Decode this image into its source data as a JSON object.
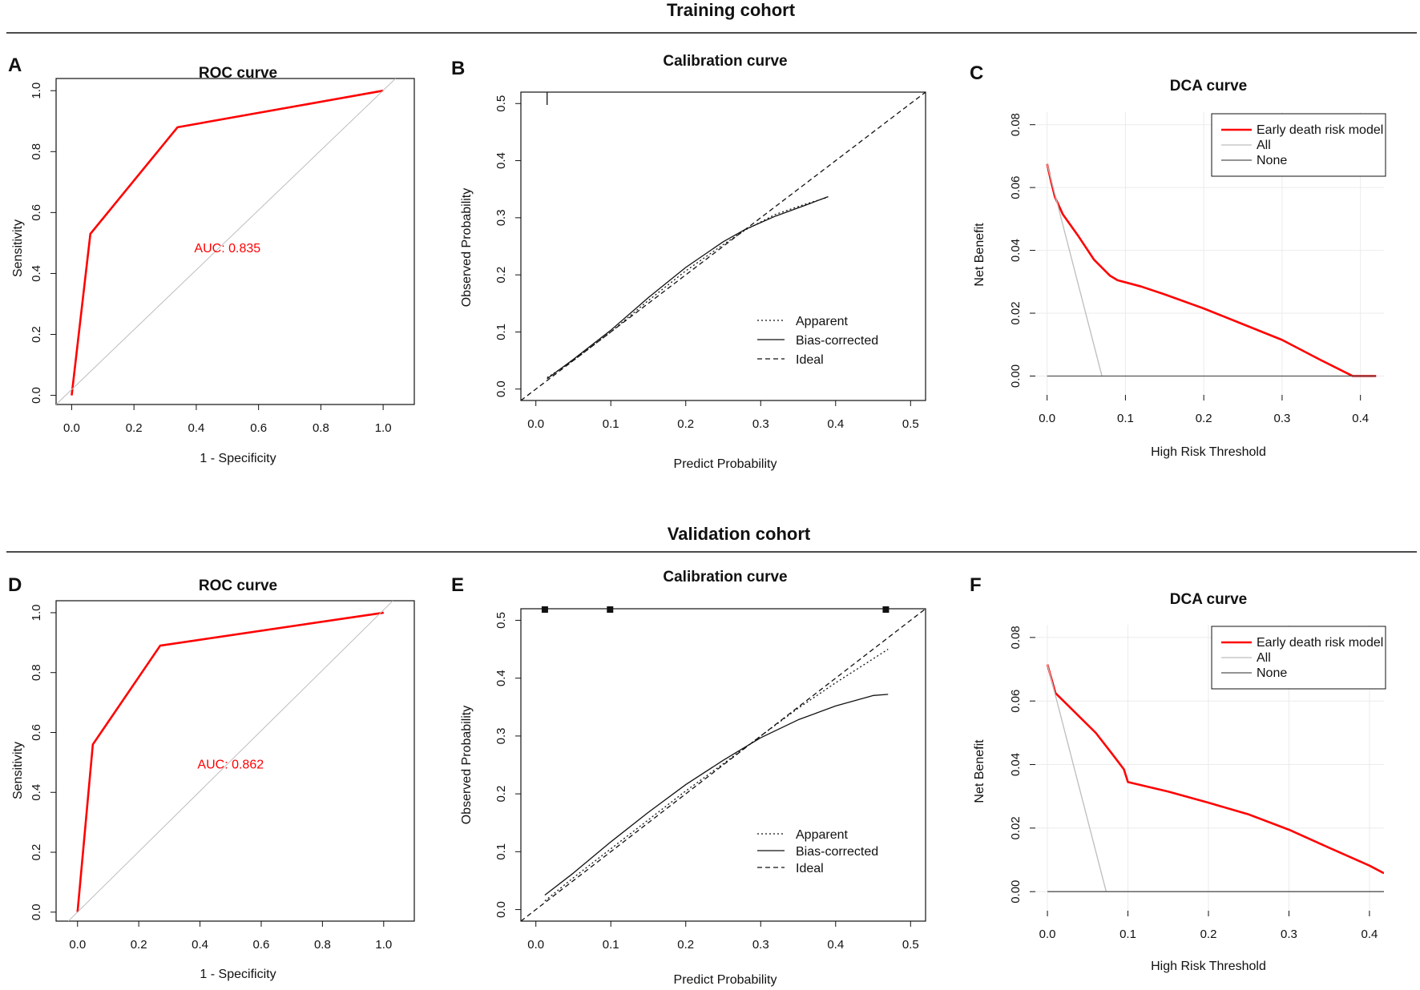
{
  "figure": {
    "training_title": "Training cohort",
    "validation_title": "Validation cohort",
    "colors": {
      "model": "#ff0000",
      "all": "#bdbdbd",
      "none": "#555555",
      "grid": "#ebebeb",
      "diag": "#bdbdbd"
    }
  },
  "chart_data": [
    {
      "id": "A",
      "type": "line",
      "title": "ROC curve",
      "xlabel": "1 - Specificity",
      "ylabel": "Sensitivity",
      "xlim": [
        -0.05,
        1.1
      ],
      "ylim": [
        -0.03,
        1.04
      ],
      "xticks": [
        "0.0",
        "0.2",
        "0.4",
        "0.6",
        "0.8",
        "1.0"
      ],
      "yticks": [
        "0.0",
        "0.2",
        "0.4",
        "0.6",
        "0.8",
        "1.0"
      ],
      "series": [
        {
          "name": "ROC",
          "x": [
            0,
            0.06,
            0.34,
            1.0
          ],
          "y": [
            0,
            0.53,
            0.88,
            1.0
          ]
        },
        {
          "name": "Reference",
          "x": [
            -0.05,
            1.04
          ],
          "y": [
            -0.03,
            1.04
          ]
        }
      ],
      "annotation": {
        "text": "AUC: 0.835",
        "x": 0.5,
        "y": 0.47
      }
    },
    {
      "id": "B",
      "type": "line",
      "title": "Calibration curve",
      "xlabel": "Predict Probability",
      "ylabel": "Observed Probability",
      "xlim": [
        -0.02,
        0.52
      ],
      "ylim": [
        -0.02,
        0.52
      ],
      "xticks": [
        "0.0",
        "0.1",
        "0.2",
        "0.3",
        "0.4",
        "0.5"
      ],
      "yticks": [
        "0.0",
        "0.1",
        "0.2",
        "0.3",
        "0.4",
        "0.5"
      ],
      "series": [
        {
          "name": "Apparent",
          "style": "dotted",
          "x": [
            0.015,
            0.05,
            0.1,
            0.15,
            0.2,
            0.25,
            0.28,
            0.32,
            0.36,
            0.39
          ],
          "y": [
            0.02,
            0.05,
            0.1,
            0.155,
            0.207,
            0.253,
            0.279,
            0.306,
            0.324,
            0.336
          ]
        },
        {
          "name": "Bias-corrected",
          "style": "solid",
          "x": [
            0.015,
            0.05,
            0.1,
            0.15,
            0.2,
            0.25,
            0.28,
            0.32,
            0.36,
            0.39
          ],
          "y": [
            0.018,
            0.052,
            0.103,
            0.16,
            0.213,
            0.258,
            0.28,
            0.303,
            0.322,
            0.337
          ]
        },
        {
          "name": "Ideal",
          "style": "dashed",
          "x": [
            -0.02,
            0.52
          ],
          "y": [
            -0.02,
            0.52
          ]
        }
      ],
      "rug": [
        0.015
      ],
      "legend": [
        "Apparent",
        "Bias-corrected",
        "Ideal"
      ]
    },
    {
      "id": "C",
      "type": "line",
      "title": "DCA curve",
      "xlabel": "High Risk Threshold",
      "ylabel": "Net Benefit",
      "xlim": [
        -0.015,
        0.43
      ],
      "ylim": [
        -0.006,
        0.084
      ],
      "xticks": [
        "0.0",
        "0.1",
        "0.2",
        "0.3",
        "0.4"
      ],
      "yticks": [
        "0.00",
        "0.02",
        "0.04",
        "0.06",
        "0.08"
      ],
      "series": [
        {
          "name": "Early death risk model",
          "x": [
            0,
            0.005,
            0.01,
            0.02,
            0.04,
            0.06,
            0.08,
            0.09,
            0.12,
            0.15,
            0.2,
            0.25,
            0.3,
            0.35,
            0.39,
            0.42
          ],
          "y": [
            0.0675,
            0.062,
            0.057,
            0.0515,
            0.0445,
            0.037,
            0.032,
            0.0305,
            0.0285,
            0.026,
            0.0215,
            0.0165,
            0.0115,
            0.005,
            0.0,
            0.0
          ]
        },
        {
          "name": "All",
          "x": [
            0,
            0.07
          ],
          "y": [
            0.0675,
            0.0
          ]
        },
        {
          "name": "None",
          "x": [
            0,
            0.42
          ],
          "y": [
            0,
            0
          ]
        }
      ],
      "legend": [
        "Early death risk model",
        "All",
        "None"
      ]
    },
    {
      "id": "D",
      "type": "line",
      "title": "ROC curve",
      "xlabel": "1 - Specificity",
      "ylabel": "Sensitivity",
      "xlim": [
        -0.07,
        1.1
      ],
      "ylim": [
        -0.03,
        1.04
      ],
      "xticks": [
        "0.0",
        "0.2",
        "0.4",
        "0.6",
        "0.8",
        "1.0"
      ],
      "yticks": [
        "0.0",
        "0.2",
        "0.4",
        "0.6",
        "0.8",
        "1.0"
      ],
      "series": [
        {
          "name": "ROC",
          "x": [
            0,
            0.05,
            0.27,
            1.0
          ],
          "y": [
            0,
            0.56,
            0.89,
            1.0
          ]
        },
        {
          "name": "Reference",
          "x": [
            -0.03,
            1.03
          ],
          "y": [
            -0.03,
            1.04
          ]
        }
      ],
      "annotation": {
        "text": "AUC: 0.862",
        "x": 0.5,
        "y": 0.48
      }
    },
    {
      "id": "E",
      "type": "line",
      "title": "Calibration curve",
      "xlabel": "Predict Probability",
      "ylabel": "Observed Probability",
      "xlim": [
        -0.02,
        0.52
      ],
      "ylim": [
        -0.02,
        0.52
      ],
      "xticks": [
        "0.0",
        "0.1",
        "0.2",
        "0.3",
        "0.4",
        "0.5"
      ],
      "yticks": [
        "0.0",
        "0.1",
        "0.2",
        "0.3",
        "0.4",
        "0.5"
      ],
      "series": [
        {
          "name": "Apparent",
          "style": "dotted",
          "x": [
            0.012,
            0.05,
            0.1,
            0.15,
            0.2,
            0.25,
            0.3,
            0.35,
            0.4,
            0.47
          ],
          "y": [
            0.015,
            0.055,
            0.105,
            0.155,
            0.205,
            0.252,
            0.3,
            0.348,
            0.392,
            0.45
          ]
        },
        {
          "name": "Bias-corrected",
          "style": "solid",
          "x": [
            0.012,
            0.05,
            0.1,
            0.15,
            0.2,
            0.25,
            0.3,
            0.35,
            0.4,
            0.45,
            0.47
          ],
          "y": [
            0.025,
            0.063,
            0.117,
            0.168,
            0.216,
            0.258,
            0.297,
            0.328,
            0.352,
            0.37,
            0.372
          ]
        },
        {
          "name": "Ideal",
          "style": "dashed",
          "x": [
            -0.02,
            0.52
          ],
          "y": [
            -0.02,
            0.52
          ]
        }
      ],
      "rug": [
        0.012,
        0.099,
        0.467
      ],
      "legend": [
        "Apparent",
        "Bias-corrected",
        "Ideal"
      ]
    },
    {
      "id": "F",
      "type": "line",
      "title": "DCA curve",
      "xlabel": "High Risk Threshold",
      "ylabel": "Net Benefit",
      "xlim": [
        -0.015,
        0.418
      ],
      "ylim": [
        -0.006,
        0.084
      ],
      "xticks": [
        "0.0",
        "0.1",
        "0.2",
        "0.3",
        "0.4"
      ],
      "yticks": [
        "0.00",
        "0.02",
        "0.04",
        "0.06",
        "0.08"
      ],
      "series": [
        {
          "name": "Early death risk model",
          "x": [
            0,
            0.005,
            0.01,
            0.02,
            0.04,
            0.06,
            0.08,
            0.095,
            0.1,
            0.15,
            0.2,
            0.25,
            0.3,
            0.35,
            0.4,
            0.418
          ],
          "y": [
            0.0715,
            0.067,
            0.0625,
            0.06,
            0.055,
            0.05,
            0.0435,
            0.0385,
            0.0345,
            0.0315,
            0.028,
            0.0243,
            0.0195,
            0.0138,
            0.0082,
            0.0058
          ]
        },
        {
          "name": "All",
          "x": [
            0,
            0.073
          ],
          "y": [
            0.0715,
            0.0
          ]
        },
        {
          "name": "None",
          "x": [
            0,
            0.418
          ],
          "y": [
            0,
            0
          ]
        }
      ],
      "legend": [
        "Early death risk model",
        "All",
        "None"
      ]
    }
  ]
}
